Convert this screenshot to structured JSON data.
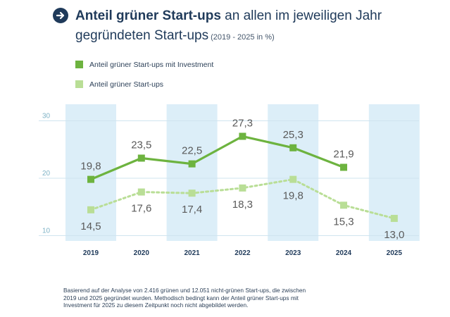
{
  "header": {
    "title_bold": "Anteil grüner Start-ups",
    "title_rest_1": " an allen im jeweiligen Jahr",
    "title_line_2": "gegründeten Start-ups",
    "title_sub": " (2019 - 2025 in %)"
  },
  "colors": {
    "series_dark": "#6db33f",
    "series_light": "#b9de96",
    "column_band": "#dceef8",
    "axis_text": "#7fb3c6",
    "gridline": "#cfe4ef",
    "label_text": "#5a5a5a"
  },
  "chart_data": {
    "type": "line",
    "title": "Anteil grüner Start-ups an allen im jeweiligen Jahr gegründeten Start-ups (2019 - 2025 in %)",
    "x": [
      "2019",
      "2020",
      "2021",
      "2022",
      "2023",
      "2024",
      "2025"
    ],
    "ylim": [
      8,
      32
    ],
    "yticks": [
      10,
      20,
      30
    ],
    "ytick_labels": [
      "10",
      "20",
      "30"
    ],
    "grid": true,
    "legend": "top-left",
    "series": [
      {
        "name": "Anteil grüner Start-ups mit Investment",
        "style": "solid",
        "values": [
          19.8,
          23.5,
          22.5,
          27.3,
          25.3,
          21.9,
          null
        ],
        "labels": [
          "19,8",
          "23,5",
          "22,5",
          "27,3",
          "25,3",
          "21,9",
          null
        ]
      },
      {
        "name": "Anteil grüner Start-ups",
        "style": "dotted",
        "values": [
          14.5,
          17.6,
          17.4,
          18.3,
          19.8,
          15.3,
          13.0
        ],
        "labels": [
          "14,5",
          "17,6",
          "17,4",
          "18,3",
          "19,8",
          "15,3",
          "13,0"
        ]
      }
    ],
    "highlighted_columns": [
      "2019",
      "2021",
      "2023",
      "2025"
    ]
  },
  "footnote": "Basierend auf der Analyse von 2.416 grünen und 12.051 nicht-grünen Start-ups, die zwischen 2019 und 2025 gegründet wurden. Methodisch bedingt kann der Anteil grüner Start-ups mit Investment für 2025 zu diesem Zeitpunkt noch nicht abgebildet werden."
}
